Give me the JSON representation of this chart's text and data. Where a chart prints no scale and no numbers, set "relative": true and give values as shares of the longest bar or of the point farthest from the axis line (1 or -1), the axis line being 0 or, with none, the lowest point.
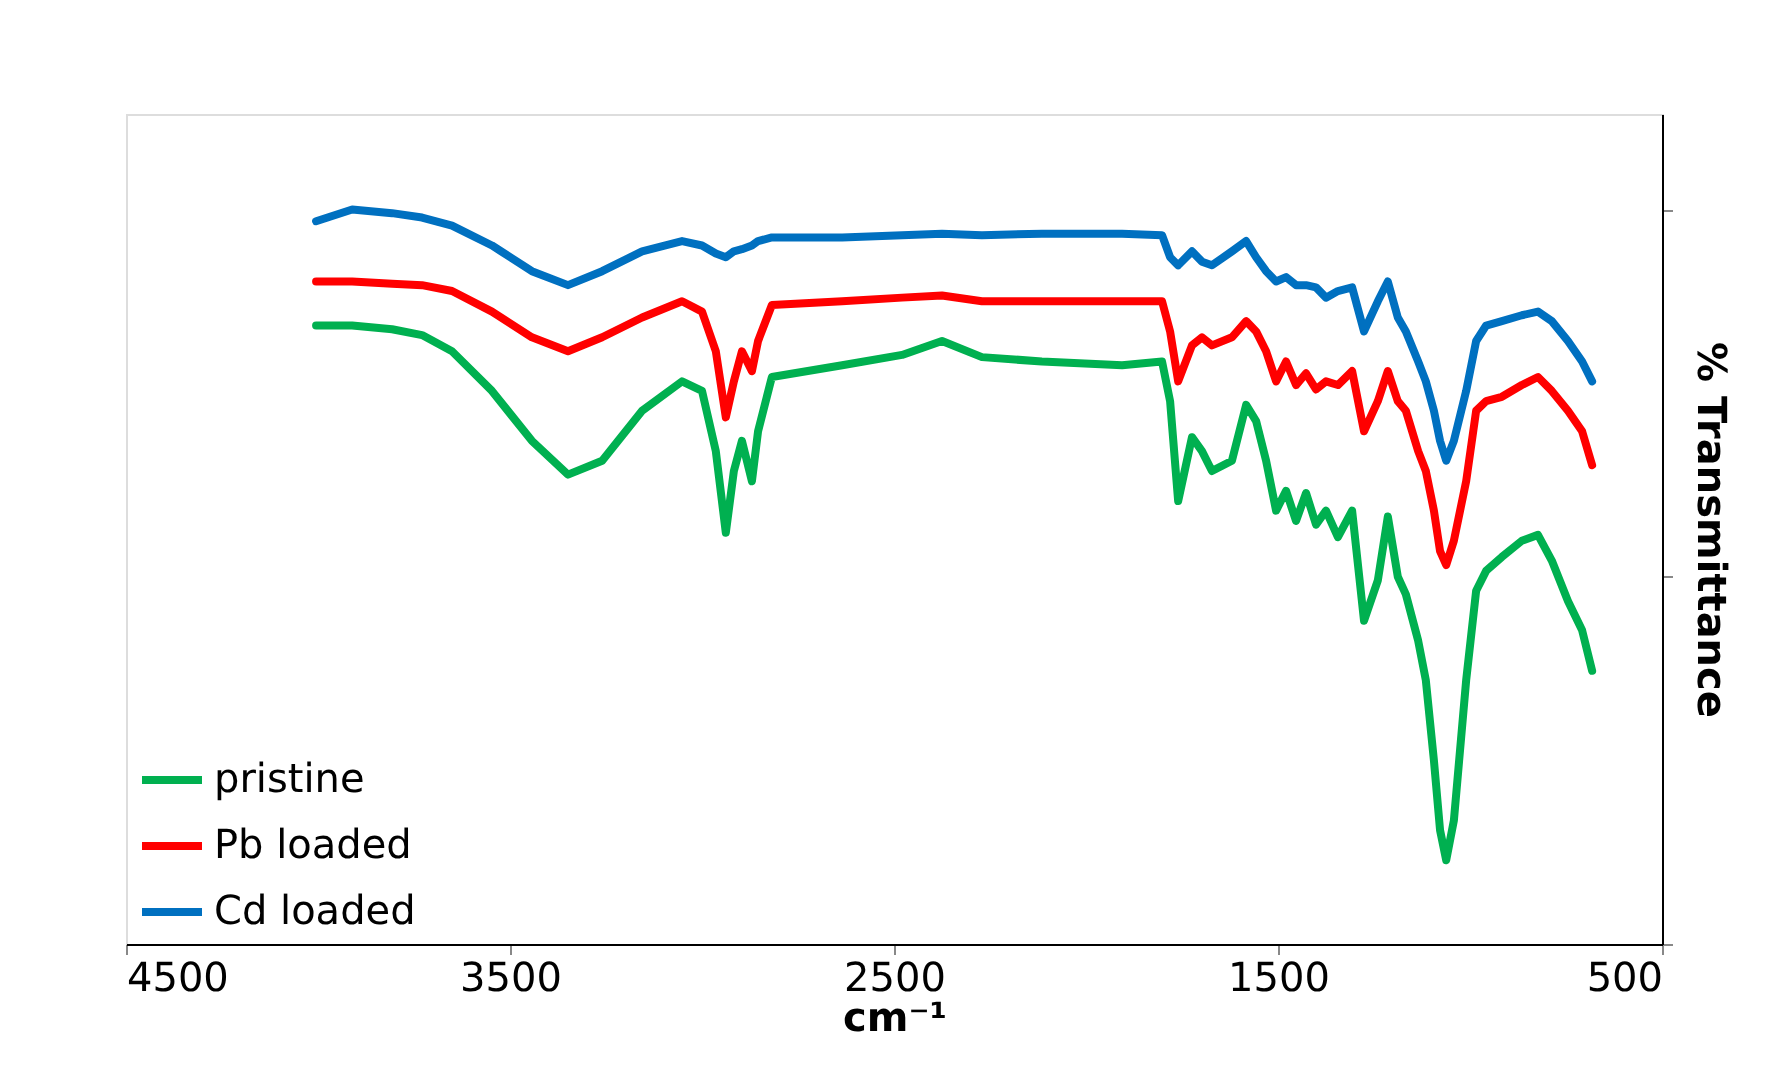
{
  "chart_data": {
    "type": "line",
    "relative": true,
    "xlabel": "cm⁻¹",
    "ylabel": "% Transmittance",
    "xlim": [
      4500,
      500
    ],
    "xticks": [
      4500,
      3500,
      2500,
      1500,
      500
    ],
    "grid": false,
    "legend": "bottom left",
    "marker": "none",
    "line_style": "solid",
    "x": [
      4005,
      3911,
      3807,
      3729,
      3651,
      3547,
      3443,
      3349,
      3260,
      3156,
      3052,
      3000,
      2964,
      2938,
      2917,
      2896,
      2870,
      2854,
      2818,
      2635,
      2479,
      2375,
      2271,
      2115,
      1906,
      1802,
      1781,
      1760,
      1724,
      1698,
      1672,
      1620,
      1583,
      1557,
      1531,
      1505,
      1479,
      1453,
      1427,
      1401,
      1375,
      1344,
      1307,
      1276,
      1240,
      1214,
      1188,
      1167,
      1135,
      1115,
      1094,
      1078,
      1062,
      1042,
      1010,
      984,
      958,
      917,
      865,
      823,
      787,
      745,
      708,
      682
    ],
    "series": [
      {
        "name": "pristine",
        "color": "#00b050",
        "values": [
          0.842,
          0.842,
          0.837,
          0.829,
          0.807,
          0.753,
          0.685,
          0.639,
          0.658,
          0.726,
          0.766,
          0.753,
          0.671,
          0.56,
          0.644,
          0.685,
          0.63,
          0.698,
          0.772,
          0.788,
          0.802,
          0.821,
          0.799,
          0.793,
          0.788,
          0.793,
          0.739,
          0.603,
          0.69,
          0.671,
          0.644,
          0.658,
          0.734,
          0.712,
          0.658,
          0.59,
          0.617,
          0.576,
          0.614,
          0.571,
          0.59,
          0.554,
          0.59,
          0.44,
          0.495,
          0.582,
          0.5,
          0.476,
          0.413,
          0.359,
          0.25,
          0.155,
          0.114,
          0.168,
          0.359,
          0.481,
          0.508,
          0.527,
          0.549,
          0.557,
          0.522,
          0.467,
          0.427,
          0.372
        ]
      },
      {
        "name": "Pb loaded",
        "color": "#ff0000",
        "values": [
          0.902,
          0.902,
          0.899,
          0.897,
          0.889,
          0.861,
          0.826,
          0.807,
          0.826,
          0.853,
          0.875,
          0.861,
          0.807,
          0.717,
          0.766,
          0.807,
          0.78,
          0.821,
          0.87,
          0.875,
          0.88,
          0.883,
          0.875,
          0.875,
          0.875,
          0.875,
          0.834,
          0.766,
          0.815,
          0.826,
          0.815,
          0.826,
          0.848,
          0.834,
          0.807,
          0.766,
          0.793,
          0.761,
          0.777,
          0.755,
          0.766,
          0.761,
          0.78,
          0.698,
          0.739,
          0.78,
          0.739,
          0.726,
          0.671,
          0.644,
          0.59,
          0.535,
          0.516,
          0.549,
          0.63,
          0.726,
          0.739,
          0.745,
          0.761,
          0.772,
          0.753,
          0.726,
          0.698,
          0.652
        ]
      },
      {
        "name": "Cd loaded",
        "color": "#0070c0",
        "values": [
          0.984,
          1,
          0.995,
          0.989,
          0.978,
          0.951,
          0.916,
          0.897,
          0.916,
          0.943,
          0.957,
          0.951,
          0.94,
          0.935,
          0.943,
          0.946,
          0.951,
          0.957,
          0.962,
          0.962,
          0.965,
          0.967,
          0.965,
          0.967,
          0.967,
          0.965,
          0.935,
          0.924,
          0.943,
          0.929,
          0.924,
          0.943,
          0.957,
          0.935,
          0.916,
          0.902,
          0.908,
          0.897,
          0.897,
          0.894,
          0.88,
          0.889,
          0.894,
          0.834,
          0.875,
          0.902,
          0.853,
          0.834,
          0.793,
          0.766,
          0.726,
          0.685,
          0.658,
          0.685,
          0.753,
          0.821,
          0.842,
          0.848,
          0.856,
          0.861,
          0.848,
          0.821,
          0.793,
          0.766
        ]
      }
    ]
  }
}
